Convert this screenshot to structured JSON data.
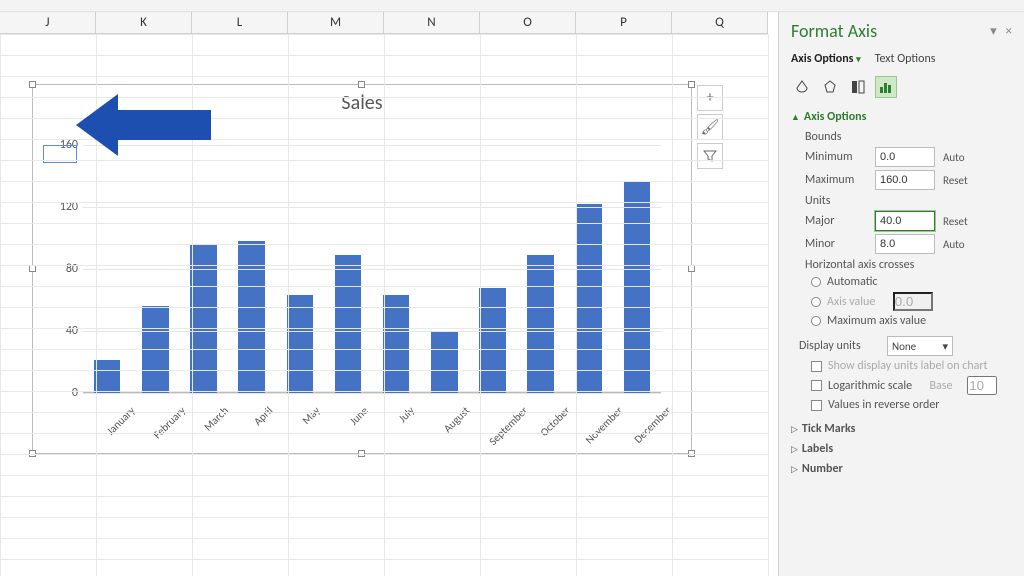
{
  "columns": [
    "J",
    "K",
    "L",
    "M",
    "N",
    "O",
    "P",
    "Q"
  ],
  "chart": {
    "type": "bar",
    "title": "Sales",
    "categories": [
      "January",
      "February",
      "March",
      "April",
      "May",
      "June",
      "July",
      "August",
      "September",
      "October",
      "November",
      "December"
    ],
    "values": [
      21,
      56,
      96,
      98,
      63,
      89,
      63,
      40,
      68,
      89,
      122,
      137
    ],
    "bar_color": "#4472c4",
    "bar_width_pct": 55,
    "ylim": [
      0,
      160
    ],
    "ytick_step": 40,
    "y_ticks": [
      0,
      40,
      80,
      120,
      160
    ],
    "grid_color": "#e5e5e5",
    "title_color": "#555555",
    "title_fontsize": 20,
    "label_fontsize": 12,
    "background_color": "#ffffff",
    "highlight_tick": 160
  },
  "chart_buttons": {
    "add": "+",
    "style": "🖌",
    "filter": "▼"
  },
  "panel": {
    "title": "Format Axis",
    "tab_axis": "Axis Options",
    "tab_text": "Text Options",
    "section_axis_options": "Axis Options",
    "bounds_label": "Bounds",
    "minimum_label": "Minimum",
    "minimum_value": "0.0",
    "minimum_btn": "Auto",
    "maximum_label": "Maximum",
    "maximum_value": "160.0",
    "maximum_btn": "Reset",
    "units_label": "Units",
    "major_label": "Major",
    "major_value": "40.0",
    "major_btn": "Reset",
    "minor_label": "Minor",
    "minor_value": "8.0",
    "minor_btn": "Auto",
    "crosses_label": "Horizontal axis crosses",
    "crosses_auto": "Automatic",
    "crosses_axisvalue": "Axis value",
    "crosses_axisvalue_val": "0.0",
    "crosses_max": "Maximum axis value",
    "display_units_label": "Display units",
    "display_units_value": "None",
    "display_units_chk": "Show display units label on chart",
    "log_label": "Logarithmic scale",
    "log_base_label": "Base",
    "log_base_value": "10",
    "reverse_label": "Values in reverse order",
    "section_tick": "Tick Marks",
    "section_labels": "Labels",
    "section_number": "Number"
  }
}
